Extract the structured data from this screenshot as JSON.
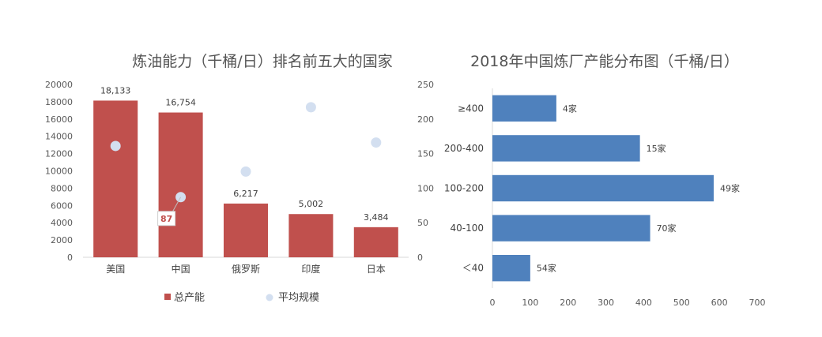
{
  "chart_data": [
    {
      "type": "bar",
      "title": "炼油能力（千桶/日）排名前五大的国家",
      "categories": [
        "美国",
        "中国",
        "俄罗斯",
        "印度",
        "日本"
      ],
      "series": [
        {
          "name": "总产能",
          "type": "bar",
          "axis": "left",
          "values": [
            18133,
            16754,
            6217,
            5002,
            3484
          ],
          "value_labels": [
            "18,133",
            "16,754",
            "6,217",
            "5,002",
            "3,484"
          ],
          "color": "#c0504d"
        },
        {
          "name": "平均规模",
          "type": "scatter",
          "axis": "right",
          "values": [
            161,
            87,
            124,
            217,
            166
          ],
          "color": "#d3dff0",
          "annotation": {
            "category": "中国",
            "label": "87",
            "color": "#c0504d"
          }
        }
      ],
      "ylim": [
        0,
        20000
      ],
      "yticks": [
        "0",
        "2000",
        "4000",
        "6000",
        "8000",
        "10000",
        "12000",
        "14000",
        "16000",
        "18000",
        "20000"
      ],
      "y2lim": [
        0,
        250
      ],
      "y2ticks": [
        "0",
        "50",
        "100",
        "150",
        "200",
        "250"
      ],
      "legend_position": "bottom",
      "grid": false
    },
    {
      "type": "bar",
      "orientation": "horizontal",
      "title": "2018年中国炼厂产能分布图（千桶/日）",
      "categories": [
        "≥400",
        "200-400",
        "100-200",
        "40-100",
        "＜40"
      ],
      "values": [
        169,
        390,
        585,
        417,
        100
      ],
      "value_labels": [
        "4家",
        "15家",
        "49家",
        "70家",
        "54家"
      ],
      "color": "#4f81bd",
      "xlim": [
        0,
        700
      ],
      "xticks": [
        "0",
        "100",
        "200",
        "300",
        "400",
        "500",
        "600",
        "700"
      ],
      "grid": false
    }
  ]
}
